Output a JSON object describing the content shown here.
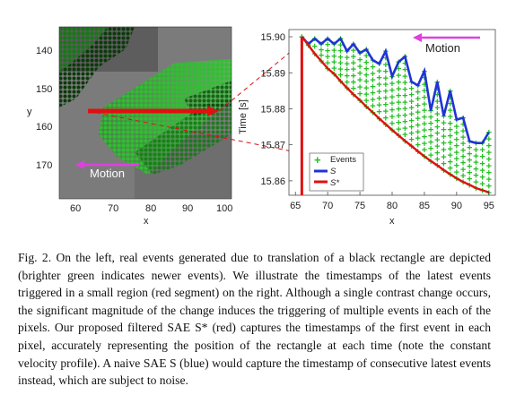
{
  "figure": {
    "left_panel": {
      "xlabel": "x",
      "ylabel": "y",
      "x_ticks": [
        "60",
        "70",
        "80",
        "90",
        "100"
      ],
      "y_ticks": [
        "140",
        "150",
        "160",
        "170"
      ],
      "motion_label": "Motion",
      "colors": {
        "background": "#7a7a7a",
        "events_old": "#0a3a0a",
        "events_new": "#35d035",
        "segment": "#e01010",
        "motion_arrow": "#e040e0"
      }
    },
    "right_panel": {
      "motion_label": "Motion",
      "legend": [
        "Events",
        "S",
        "S*"
      ]
    }
  },
  "chart_data": {
    "type": "line",
    "xlabel": "x",
    "ylabel": "Time [s]",
    "xlim": [
      64,
      96
    ],
    "ylim": [
      15.856,
      15.902
    ],
    "x_ticks": [
      65,
      70,
      75,
      80,
      85,
      90,
      95
    ],
    "y_ticks": [
      15.86,
      15.87,
      15.88,
      15.89,
      15.9
    ],
    "series": [
      {
        "name": "S",
        "color": "#1f33d6",
        "x": [
          66,
          67,
          68,
          69,
          70,
          71,
          72,
          73,
          74,
          75,
          76,
          77,
          78,
          79,
          80,
          81,
          82,
          83,
          84,
          85,
          86,
          87,
          88,
          89,
          90,
          91,
          92,
          93,
          94,
          95
        ],
        "y": [
          15.9,
          15.898,
          15.8995,
          15.898,
          15.8995,
          15.898,
          15.8995,
          15.896,
          15.898,
          15.8955,
          15.8965,
          15.8935,
          15.8925,
          15.896,
          15.889,
          15.893,
          15.8945,
          15.8875,
          15.8865,
          15.8905,
          15.8795,
          15.8875,
          15.878,
          15.885,
          15.877,
          15.8775,
          15.871,
          15.8705,
          15.8705,
          15.8735
        ]
      },
      {
        "name": "S*",
        "color": "#e01010",
        "x": [
          66,
          67,
          68,
          69,
          70,
          71,
          72,
          73,
          74,
          75,
          76,
          77,
          78,
          79,
          80,
          81,
          82,
          83,
          84,
          85,
          86,
          87,
          88,
          89,
          90,
          91,
          92,
          93,
          94,
          95
        ],
        "y": [
          15.9,
          15.8977,
          15.8953,
          15.8933,
          15.8912,
          15.8897,
          15.8877,
          15.8858,
          15.884,
          15.8824,
          15.8806,
          15.879,
          15.8773,
          15.8757,
          15.8741,
          15.8726,
          15.8711,
          15.8697,
          15.8682,
          15.8668,
          15.8655,
          15.8643,
          15.863,
          15.8618,
          15.8607,
          15.8597,
          15.8589,
          15.858,
          15.8574,
          15.8568
        ]
      }
    ]
  },
  "caption": {
    "text": "Fig. 2.   On the left, real events generated due to translation of a black rectangle are depicted (brighter green indicates newer events). We illustrate the timestamps of the latest events triggered in a small region (red segment) on the right. Although a single contrast change occurs, the significant magnitude of the change induces the triggering of multiple events in each of the pixels. Our proposed filtered SAE S* (red) captures the timestamps of the first event in each pixel, accurately representing the position of the rectangle at each time (note the constant velocity profile). A naive SAE S (blue) would capture the timestamp of consecutive latest events instead, which are subject to noise."
  }
}
